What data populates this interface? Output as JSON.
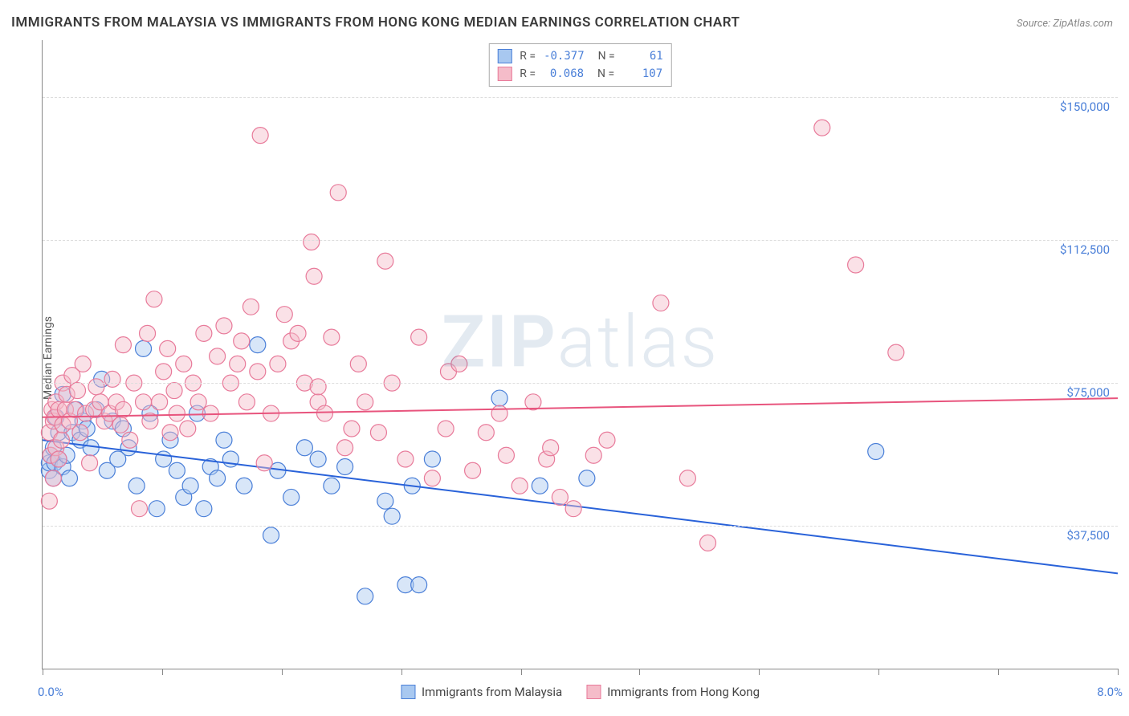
{
  "title": "IMMIGRANTS FROM MALAYSIA VS IMMIGRANTS FROM HONG KONG MEDIAN EARNINGS CORRELATION CHART",
  "source": "Source: ZipAtlas.com",
  "y_axis_label": "Median Earnings",
  "watermark_bold": "ZIP",
  "watermark_light": "atlas",
  "chart": {
    "type": "scatter-with-regression-lines",
    "background_color": "#ffffff",
    "grid_color": "#dddddd",
    "axis_color": "#888888",
    "tick_label_color": "#4a7fd8",
    "xlim": [
      0.0,
      8.0
    ],
    "ylim": [
      0,
      165000
    ],
    "x_ticks": [
      0.0,
      0.89,
      1.78,
      2.67,
      3.56,
      4.44,
      5.33,
      6.22,
      7.11,
      8.0
    ],
    "x_tick_labels": {
      "start": "0.0%",
      "end": "8.0%"
    },
    "y_gridlines": [
      37500,
      75000,
      112500,
      150000
    ],
    "y_tick_labels": [
      "$37,500",
      "$75,000",
      "$112,500",
      "$150,000"
    ],
    "marker_radius": 10,
    "marker_opacity": 0.45,
    "marker_stroke_width": 1.2,
    "line_width": 2,
    "series": [
      {
        "name": "Immigrants from Malaysia",
        "fill_color": "#a8c8f0",
        "stroke_color": "#4a7fd8",
        "line_color": "#2962d9",
        "r_value": "-0.377",
        "n_value": "61",
        "regression": {
          "x1": 0.0,
          "y1": 60000,
          "x2": 8.0,
          "y2": 25000
        },
        "points": [
          [
            0.05,
            52000
          ],
          [
            0.05,
            54000
          ],
          [
            0.06,
            56000
          ],
          [
            0.08,
            50000
          ],
          [
            0.08,
            58000
          ],
          [
            0.09,
            54000
          ],
          [
            0.1,
            66000
          ],
          [
            0.12,
            55000
          ],
          [
            0.12,
            62000
          ],
          [
            0.15,
            53000
          ],
          [
            0.15,
            72000
          ],
          [
            0.18,
            56000
          ],
          [
            0.2,
            50000
          ],
          [
            0.22,
            62000
          ],
          [
            0.25,
            68000
          ],
          [
            0.28,
            60000
          ],
          [
            0.3,
            65000
          ],
          [
            0.33,
            63000
          ],
          [
            0.36,
            58000
          ],
          [
            0.4,
            68000
          ],
          [
            0.44,
            76000
          ],
          [
            0.48,
            52000
          ],
          [
            0.52,
            65000
          ],
          [
            0.56,
            55000
          ],
          [
            0.6,
            63000
          ],
          [
            0.64,
            58000
          ],
          [
            0.7,
            48000
          ],
          [
            0.75,
            84000
          ],
          [
            0.8,
            67000
          ],
          [
            0.85,
            42000
          ],
          [
            0.9,
            55000
          ],
          [
            0.95,
            60000
          ],
          [
            1.0,
            52000
          ],
          [
            1.05,
            45000
          ],
          [
            1.1,
            48000
          ],
          [
            1.15,
            67000
          ],
          [
            1.2,
            42000
          ],
          [
            1.25,
            53000
          ],
          [
            1.3,
            50000
          ],
          [
            1.35,
            60000
          ],
          [
            1.4,
            55000
          ],
          [
            1.5,
            48000
          ],
          [
            1.6,
            85000
          ],
          [
            1.7,
            35000
          ],
          [
            1.75,
            52000
          ],
          [
            1.85,
            45000
          ],
          [
            1.95,
            58000
          ],
          [
            2.05,
            55000
          ],
          [
            2.15,
            48000
          ],
          [
            2.25,
            53000
          ],
          [
            2.4,
            19000
          ],
          [
            2.55,
            44000
          ],
          [
            2.6,
            40000
          ],
          [
            2.7,
            22000
          ],
          [
            2.75,
            48000
          ],
          [
            2.8,
            22000
          ],
          [
            2.9,
            55000
          ],
          [
            3.4,
            71000
          ],
          [
            3.7,
            48000
          ],
          [
            4.05,
            50000
          ],
          [
            6.2,
            57000
          ]
        ]
      },
      {
        "name": "Immigrants from Hong Kong",
        "fill_color": "#f5bcc9",
        "stroke_color": "#e87a9a",
        "line_color": "#e8547d",
        "r_value": "0.068",
        "n_value": "107",
        "regression": {
          "x1": 0.0,
          "y1": 66000,
          "x2": 8.0,
          "y2": 71000
        },
        "points": [
          [
            0.05,
            44000
          ],
          [
            0.05,
            62000
          ],
          [
            0.06,
            56000
          ],
          [
            0.07,
            68000
          ],
          [
            0.08,
            50000
          ],
          [
            0.08,
            65000
          ],
          [
            0.09,
            66000
          ],
          [
            0.1,
            70000
          ],
          [
            0.1,
            58000
          ],
          [
            0.12,
            68000
          ],
          [
            0.12,
            55000
          ],
          [
            0.14,
            60000
          ],
          [
            0.15,
            75000
          ],
          [
            0.15,
            64000
          ],
          [
            0.17,
            68000
          ],
          [
            0.18,
            72000
          ],
          [
            0.2,
            65000
          ],
          [
            0.22,
            77000
          ],
          [
            0.24,
            68000
          ],
          [
            0.26,
            73000
          ],
          [
            0.28,
            62000
          ],
          [
            0.3,
            80000
          ],
          [
            0.32,
            67000
          ],
          [
            0.35,
            54000
          ],
          [
            0.38,
            68000
          ],
          [
            0.4,
            74000
          ],
          [
            0.43,
            70000
          ],
          [
            0.46,
            65000
          ],
          [
            0.5,
            67000
          ],
          [
            0.52,
            76000
          ],
          [
            0.55,
            70000
          ],
          [
            0.58,
            64000
          ],
          [
            0.6,
            68000
          ],
          [
            0.6,
            85000
          ],
          [
            0.65,
            60000
          ],
          [
            0.68,
            75000
          ],
          [
            0.72,
            42000
          ],
          [
            0.75,
            70000
          ],
          [
            0.78,
            88000
          ],
          [
            0.8,
            65000
          ],
          [
            0.83,
            97000
          ],
          [
            0.87,
            70000
          ],
          [
            0.9,
            78000
          ],
          [
            0.93,
            84000
          ],
          [
            0.95,
            62000
          ],
          [
            0.98,
            73000
          ],
          [
            1.0,
            67000
          ],
          [
            1.05,
            80000
          ],
          [
            1.08,
            63000
          ],
          [
            1.12,
            75000
          ],
          [
            1.16,
            70000
          ],
          [
            1.2,
            88000
          ],
          [
            1.25,
            67000
          ],
          [
            1.3,
            82000
          ],
          [
            1.35,
            90000
          ],
          [
            1.4,
            75000
          ],
          [
            1.45,
            80000
          ],
          [
            1.48,
            86000
          ],
          [
            1.52,
            70000
          ],
          [
            1.55,
            95000
          ],
          [
            1.6,
            78000
          ],
          [
            1.62,
            140000
          ],
          [
            1.65,
            54000
          ],
          [
            1.7,
            67000
          ],
          [
            1.75,
            80000
          ],
          [
            1.8,
            93000
          ],
          [
            1.85,
            86000
          ],
          [
            1.9,
            88000
          ],
          [
            1.95,
            75000
          ],
          [
            2.0,
            112000
          ],
          [
            2.02,
            103000
          ],
          [
            2.05,
            70000
          ],
          [
            2.05,
            74000
          ],
          [
            2.1,
            67000
          ],
          [
            2.15,
            87000
          ],
          [
            2.2,
            125000
          ],
          [
            2.25,
            58000
          ],
          [
            2.3,
            63000
          ],
          [
            2.35,
            80000
          ],
          [
            2.4,
            70000
          ],
          [
            2.5,
            62000
          ],
          [
            2.55,
            107000
          ],
          [
            2.6,
            75000
          ],
          [
            2.7,
            55000
          ],
          [
            2.8,
            87000
          ],
          [
            2.9,
            50000
          ],
          [
            3.0,
            63000
          ],
          [
            3.02,
            78000
          ],
          [
            3.1,
            80000
          ],
          [
            3.2,
            52000
          ],
          [
            3.3,
            62000
          ],
          [
            3.4,
            67000
          ],
          [
            3.45,
            56000
          ],
          [
            3.55,
            48000
          ],
          [
            3.65,
            70000
          ],
          [
            3.75,
            55000
          ],
          [
            3.78,
            58000
          ],
          [
            3.85,
            45000
          ],
          [
            3.95,
            42000
          ],
          [
            4.1,
            56000
          ],
          [
            4.2,
            60000
          ],
          [
            4.6,
            96000
          ],
          [
            4.8,
            50000
          ],
          [
            4.95,
            33000
          ],
          [
            5.8,
            142000
          ],
          [
            6.05,
            106000
          ],
          [
            6.35,
            83000
          ]
        ]
      }
    ]
  },
  "bottom_legend": [
    {
      "label": "Immigrants from Malaysia",
      "fill": "#a8c8f0",
      "stroke": "#4a7fd8"
    },
    {
      "label": "Immigrants from Hong Kong",
      "fill": "#f5bcc9",
      "stroke": "#e87a9a"
    }
  ]
}
